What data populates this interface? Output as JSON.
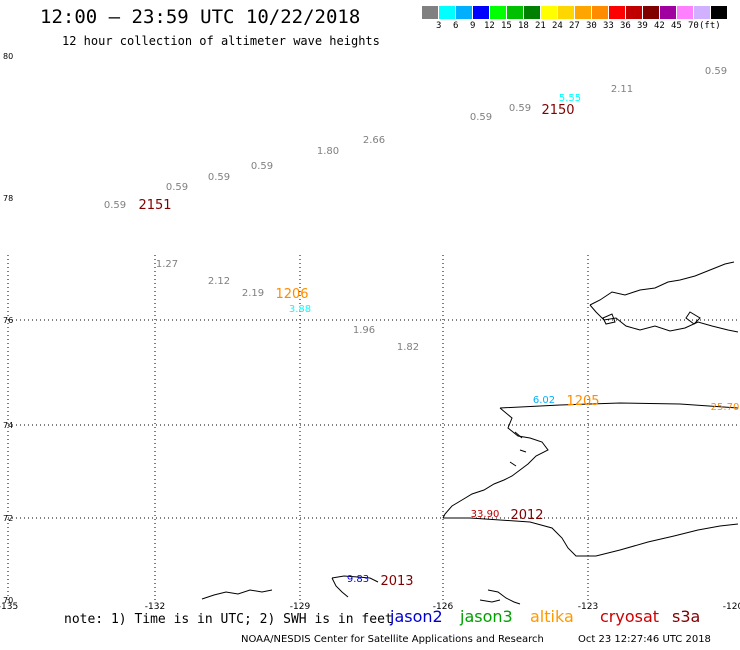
{
  "header": {
    "title": "12:00 – 23:59 UTC 10/22/2018",
    "subtitle": "12 hour collection of altimeter wave heights"
  },
  "colorbar": {
    "colors": [
      "#808080",
      "#00ffff",
      "#00b0ff",
      "#0000ff",
      "#00ff00",
      "#00c000",
      "#008000",
      "#ffff00",
      "#ffd700",
      "#ffa500",
      "#ff8c00",
      "#ff0000",
      "#c00000",
      "#800000",
      "#a000a0",
      "#ff80ff",
      "#d0b0ff",
      "#000000"
    ],
    "labels": [
      "3",
      "6",
      "9",
      "12",
      "15",
      "18",
      "21",
      "24",
      "27",
      "30",
      "33",
      "36",
      "39",
      "42",
      "45",
      "70",
      "(ft)"
    ]
  },
  "axes": {
    "lat_labels": [
      "80",
      "78",
      "76",
      "74",
      "72",
      "70"
    ],
    "lon_labels": [
      "-135",
      "-132",
      "-129",
      "-126",
      "-123",
      "-120"
    ]
  },
  "tracks": [
    {
      "label": "2150",
      "color": "#800000"
    },
    {
      "label": "2151",
      "color": "#800000"
    },
    {
      "label": "1206",
      "color": "#ff8c00"
    },
    {
      "label": "1205",
      "color": "#ff8c00"
    },
    {
      "label": "2012",
      "color": "#800000"
    },
    {
      "label": "2013",
      "color": "#800000"
    }
  ],
  "wave_heights": [
    {
      "value": "0.59",
      "color": "#808080"
    },
    {
      "value": "2.11",
      "color": "#808080"
    },
    {
      "value": "5.55",
      "color": "#00ffff"
    },
    {
      "value": "0.59",
      "color": "#808080"
    },
    {
      "value": "0.59",
      "color": "#808080"
    },
    {
      "value": "2.66",
      "color": "#808080"
    },
    {
      "value": "1.80",
      "color": "#808080"
    },
    {
      "value": "0.59",
      "color": "#808080"
    },
    {
      "value": "0.59",
      "color": "#808080"
    },
    {
      "value": "0.59",
      "color": "#808080"
    },
    {
      "value": "0.59",
      "color": "#808080"
    },
    {
      "value": "1.27",
      "color": "#808080"
    },
    {
      "value": "2.12",
      "color": "#808080"
    },
    {
      "value": "2.19",
      "color": "#808080"
    },
    {
      "value": "3.88",
      "color": "#00ffff"
    },
    {
      "value": "1.96",
      "color": "#808080"
    },
    {
      "value": "1.82",
      "color": "#808080"
    },
    {
      "value": "6.02",
      "color": "#00b0ff"
    },
    {
      "value": "25.70",
      "color": "#ff8c00"
    },
    {
      "value": "33.90",
      "color": "#c00000"
    },
    {
      "value": "9.83",
      "color": "#0000ff"
    }
  ],
  "note": "note: 1) Time is in UTC; 2) SWH is in feet",
  "legend": [
    {
      "name": "jason2",
      "color": "#0000cc"
    },
    {
      "name": "jason3",
      "color": "#00a000"
    },
    {
      "name": "altika",
      "color": "#ff9900"
    },
    {
      "name": "cryosat",
      "color": "#cc0000"
    },
    {
      "name": "s3a",
      "color": "#800000"
    }
  ],
  "footer": {
    "credit": "NOAA/NESDIS Center for Satellite Applications and Research",
    "timestamp": "Oct 23 12:27:46 UTC 2018"
  }
}
